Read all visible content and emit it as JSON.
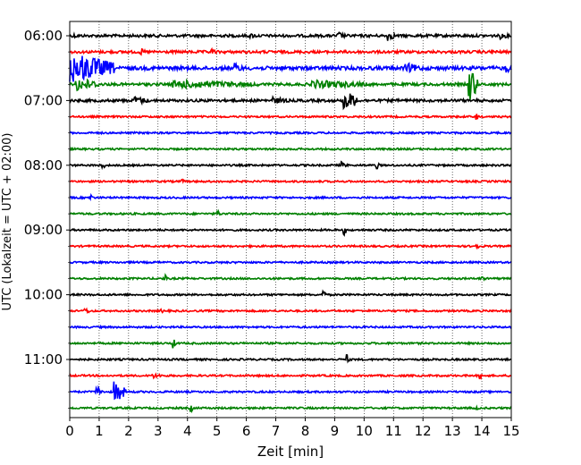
{
  "chart_data": {
    "type": "line",
    "title": "",
    "xlabel": "Zeit  [min]",
    "ylabel": "UTC (Lokalzeit = UTC + 02:00)",
    "xlim": [
      0,
      15
    ],
    "x_ticks": [
      "0",
      "1",
      "2",
      "3",
      "4",
      "5",
      "6",
      "7",
      "8",
      "9",
      "10",
      "11",
      "12",
      "13",
      "14",
      "15"
    ],
    "y_ticks": [
      "06:00",
      "07:00",
      "08:00",
      "09:00",
      "10:00",
      "11:00"
    ],
    "grid": "vertical dotted",
    "colors": [
      "#000000",
      "#ff0000",
      "#0000ff",
      "#008000"
    ],
    "traces": [
      {
        "hour": "06:00",
        "offset_min": 0,
        "color": "#000000",
        "noise": 1.5,
        "events": [
          [
            0.1,
            0.3,
            3
          ],
          [
            6.1,
            0.4,
            3
          ],
          [
            9.1,
            0.25,
            5
          ],
          [
            10.8,
            0.25,
            6
          ],
          [
            14.6,
            0.3,
            4
          ]
        ]
      },
      {
        "hour": "06:00",
        "offset_min": 10,
        "color": "#ff0000",
        "noise": 1.5,
        "events": [
          [
            2.4,
            0.2,
            4
          ],
          [
            4.8,
            0.2,
            4
          ],
          [
            9.6,
            0.3,
            3
          ],
          [
            14.3,
            0.3,
            3
          ]
        ]
      },
      {
        "hour": "06:00",
        "offset_min": 20,
        "color": "#0000ff",
        "noise": 2,
        "events": [
          [
            0,
            1.5,
            18
          ],
          [
            5.6,
            0.3,
            6
          ],
          [
            11.4,
            0.6,
            6
          ],
          [
            14.8,
            0.2,
            6
          ]
        ]
      },
      {
        "hour": "06:00",
        "offset_min": 30,
        "color": "#008000",
        "noise": 1.5,
        "events": [
          [
            0.2,
            0.8,
            8
          ],
          [
            3.5,
            3,
            5
          ],
          [
            8.2,
            2,
            5
          ],
          [
            13.55,
            0.3,
            22
          ]
        ]
      },
      {
        "hour": "07:00",
        "offset_min": 0,
        "color": "#000000",
        "noise": 1.5,
        "events": [
          [
            2.2,
            0.5,
            5
          ],
          [
            9.3,
            0.5,
            12
          ],
          [
            6.9,
            0.6,
            4
          ]
        ]
      },
      {
        "hour": "07:00",
        "offset_min": 10,
        "color": "#ff0000",
        "noise": 1,
        "events": [
          [
            13.8,
            0.1,
            5
          ]
        ]
      },
      {
        "hour": "07:00",
        "offset_min": 20,
        "color": "#0000ff",
        "noise": 1,
        "events": []
      },
      {
        "hour": "07:00",
        "offset_min": 30,
        "color": "#008000",
        "noise": 1,
        "events": []
      },
      {
        "hour": "08:00",
        "offset_min": 0,
        "color": "#000000",
        "noise": 1,
        "events": [
          [
            1.1,
            0.1,
            5
          ],
          [
            9.2,
            0.2,
            5
          ],
          [
            10.4,
            0.1,
            6
          ]
        ]
      },
      {
        "hour": "08:00",
        "offset_min": 10,
        "color": "#ff0000",
        "noise": 1,
        "events": [
          [
            3.8,
            0.1,
            3
          ]
        ]
      },
      {
        "hour": "08:00",
        "offset_min": 20,
        "color": "#0000ff",
        "noise": 1,
        "events": [
          [
            0.7,
            0.1,
            6
          ]
        ]
      },
      {
        "hour": "08:00",
        "offset_min": 30,
        "color": "#008000",
        "noise": 1,
        "events": [
          [
            5,
            0.1,
            5
          ]
        ]
      },
      {
        "hour": "09:00",
        "offset_min": 0,
        "color": "#000000",
        "noise": 1,
        "events": [
          [
            9.3,
            0.1,
            7
          ]
        ]
      },
      {
        "hour": "09:00",
        "offset_min": 10,
        "color": "#ff0000",
        "noise": 1,
        "events": [
          [
            13.8,
            0.1,
            5
          ]
        ]
      },
      {
        "hour": "09:00",
        "offset_min": 20,
        "color": "#0000ff",
        "noise": 1,
        "events": []
      },
      {
        "hour": "09:00",
        "offset_min": 30,
        "color": "#008000",
        "noise": 1,
        "events": [
          [
            3.2,
            0.1,
            6
          ],
          [
            14,
            0.1,
            3
          ]
        ]
      },
      {
        "hour": "10:00",
        "offset_min": 0,
        "color": "#000000",
        "noise": 1,
        "events": [
          [
            8.6,
            0.1,
            6
          ]
        ]
      },
      {
        "hour": "10:00",
        "offset_min": 10,
        "color": "#ff0000",
        "noise": 1,
        "events": [
          [
            0.5,
            0.3,
            3
          ],
          [
            3.1,
            0.1,
            3
          ]
        ]
      },
      {
        "hour": "10:00",
        "offset_min": 20,
        "color": "#0000ff",
        "noise": 1,
        "events": []
      },
      {
        "hour": "10:00",
        "offset_min": 30,
        "color": "#008000",
        "noise": 1,
        "events": [
          [
            3.5,
            0.1,
            6
          ]
        ]
      },
      {
        "hour": "11:00",
        "offset_min": 0,
        "color": "#000000",
        "noise": 1,
        "events": [
          [
            9.4,
            0.1,
            6
          ]
        ]
      },
      {
        "hour": "11:00",
        "offset_min": 10,
        "color": "#ff0000",
        "noise": 1,
        "events": [
          [
            2.8,
            0.4,
            3
          ],
          [
            13.9,
            0.1,
            5
          ]
        ]
      },
      {
        "hour": "11:00",
        "offset_min": 20,
        "color": "#0000ff",
        "noise": 1,
        "events": [
          [
            0.9,
            0.2,
            8
          ],
          [
            1.5,
            0.4,
            12
          ]
        ]
      },
      {
        "hour": "11:00",
        "offset_min": 30,
        "color": "#008000",
        "noise": 1,
        "events": [
          [
            4.1,
            0.1,
            5
          ],
          [
            13.8,
            0.1,
            3
          ]
        ]
      }
    ]
  }
}
